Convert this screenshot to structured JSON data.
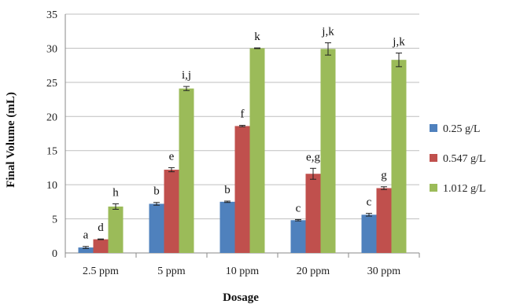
{
  "chart_data": {
    "type": "bar",
    "title": "",
    "xlabel": "Dosage",
    "ylabel": "Final Volume (mL)",
    "ylim": [
      0,
      35
    ],
    "yticks": [
      0,
      5,
      10,
      15,
      20,
      25,
      30,
      35
    ],
    "grid": true,
    "legend_position": "right",
    "categories": [
      "2.5 ppm",
      "5 ppm",
      "10 ppm",
      "20 ppm",
      "30 ppm"
    ],
    "series": [
      {
        "name": "0.25 g/L",
        "color": "#4F81BD",
        "values": [
          0.8,
          7.2,
          7.5,
          4.8,
          5.6
        ],
        "errors": [
          0.15,
          0.2,
          0.1,
          0.1,
          0.2
        ],
        "labels": [
          "a",
          "b",
          "b",
          "c",
          "c"
        ]
      },
      {
        "name": "0.547 g/L",
        "color": "#C0504D",
        "values": [
          2.0,
          12.2,
          18.6,
          11.6,
          9.5
        ],
        "errors": [
          0.05,
          0.3,
          0.1,
          0.8,
          0.2
        ],
        "labels": [
          "d",
          "e",
          "f",
          "e,g",
          "g"
        ]
      },
      {
        "name": "1.012 g/L",
        "color": "#9BBB59",
        "values": [
          6.8,
          24.1,
          30.0,
          29.9,
          28.3
        ],
        "errors": [
          0.4,
          0.3,
          0.05,
          0.9,
          1.0
        ],
        "labels": [
          "h",
          "i,j",
          "k",
          "j,k",
          "j,k"
        ]
      }
    ]
  }
}
